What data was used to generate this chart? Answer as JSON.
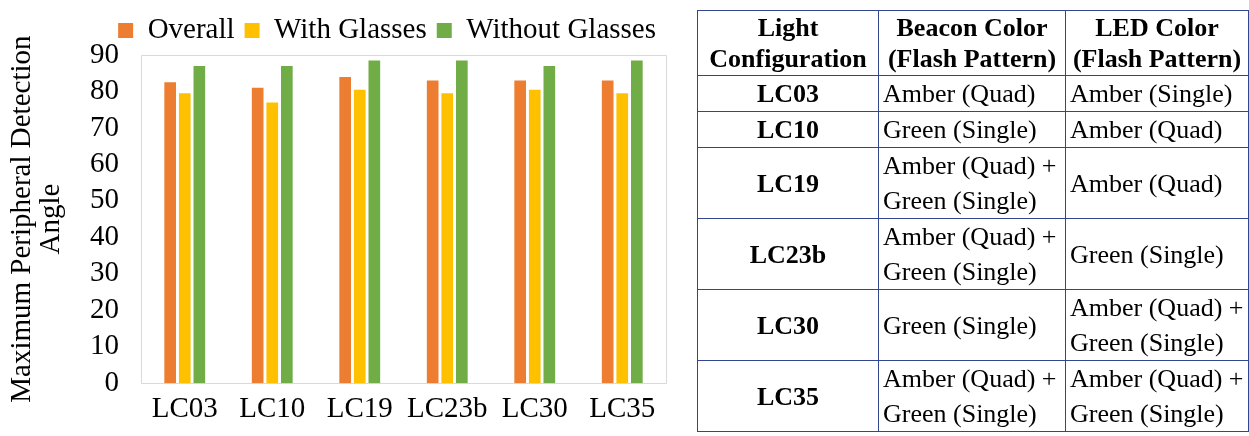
{
  "chart_data": [
    {
      "type": "bar",
      "categories": [
        "LC03",
        "LC10",
        "LC19",
        "LC23b",
        "LC30",
        "LC35"
      ],
      "series": [
        {
          "name": "Overall",
          "color": "#ed7d31",
          "values": [
            82.5,
            81,
            84,
            83,
            83,
            83
          ]
        },
        {
          "name": "With Glasses",
          "color": "#ffc000",
          "values": [
            79.5,
            77,
            80.5,
            79.5,
            80.5,
            79.5
          ]
        },
        {
          "name": "Without Glasses",
          "color": "#70ad47",
          "values": [
            87,
            87,
            88.5,
            88.5,
            87,
            88.5
          ]
        }
      ],
      "ylabel": "Maximum Peripheral Detection Angle",
      "ylim": [
        0,
        90
      ],
      "yticks": [
        0,
        10,
        20,
        30,
        40,
        50,
        60,
        70,
        80,
        90
      ],
      "legend": "top",
      "grid": false
    },
    {
      "type": "other",
      "categories": [
        "Light Configuration",
        "Beacon Color (Flash Pattern)",
        "LED Color (Flash Pattern)"
      ],
      "y_categories": [
        "LC03",
        "LC10",
        "LC19",
        "LC23b",
        "LC30",
        "LC35"
      ],
      "cell_labels": [
        [
          "Amber (Quad)",
          "Amber (Single)"
        ],
        [
          "Green (Single)",
          "Amber (Quad)"
        ],
        [
          "Amber (Quad) + Green (Single)",
          "Amber (Quad)"
        ],
        [
          "Amber (Quad) + Green (Single)",
          "Green (Single)"
        ],
        [
          "Green (Single)",
          "Amber (Quad) + Green (Single)"
        ],
        [
          "Amber (Quad) + Green (Single)",
          "Amber (Quad) + Green (Single)"
        ]
      ]
    }
  ]
}
